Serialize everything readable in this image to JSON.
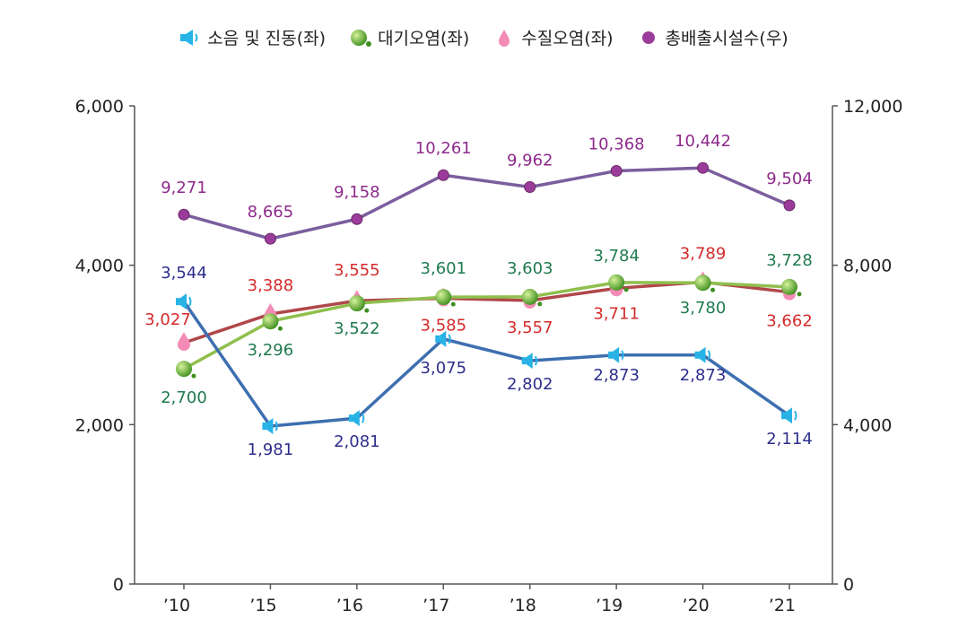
{
  "chart_data": {
    "type": "line",
    "categories": [
      "’10",
      "’15",
      "’16",
      "’17",
      "’18",
      "’19",
      "’20",
      "’21"
    ],
    "y_left": {
      "ylim": [
        0,
        6000
      ],
      "ticks": [
        "0",
        "2,000",
        "4,000",
        "6,000"
      ]
    },
    "y_right": {
      "ylim": [
        0,
        12000
      ],
      "ticks": [
        "0",
        "4,000",
        "8,000",
        "12,000"
      ]
    },
    "series": [
      {
        "name": "소음 및 진동(좌)",
        "axis": "left",
        "color": "#3d6fb0",
        "label_color": "#2e2f8c",
        "marker": "speaker-icon",
        "values": [
          3544,
          1981,
          2081,
          3075,
          2802,
          2873,
          2873,
          2114
        ],
        "labels": [
          "3,544",
          "1,981",
          "2,081",
          "3,075",
          "2,802",
          "2,873",
          "2,873",
          "2,114"
        ]
      },
      {
        "name": "대기오염(좌)",
        "axis": "left",
        "color": "#8fbf4d",
        "label_color": "#1f7a4f",
        "marker": "green-ball-icon",
        "values": [
          2700,
          3296,
          3522,
          3601,
          3603,
          3784,
          3780,
          3728
        ],
        "labels": [
          "2,700",
          "3,296",
          "3,522",
          "3,601",
          "3,603",
          "3,784",
          "3,780",
          "3,728"
        ]
      },
      {
        "name": "수질오염(좌)",
        "axis": "left",
        "color": "#b0474a",
        "label_color": "#d42a2a",
        "marker": "water-drop-icon",
        "values": [
          3027,
          3388,
          3555,
          3585,
          3557,
          3711,
          3789,
          3662
        ],
        "labels": [
          "3,027",
          "3,388",
          "3,555",
          "3,585",
          "3,557",
          "3,711",
          "3,789",
          "3,662"
        ]
      },
      {
        "name": "총배출시설수(우)",
        "axis": "right",
        "color": "#7b5e9e",
        "label_color": "#8e2a8c",
        "marker": "purple-dot-icon",
        "values": [
          9271,
          8665,
          9158,
          10261,
          9962,
          10368,
          10442,
          9504
        ],
        "labels": [
          "9,271",
          "8,665",
          "9,158",
          "10,261",
          "9,962",
          "10,368",
          "10,442",
          "9,504"
        ]
      }
    ],
    "grid": false,
    "legend": "top-center"
  }
}
